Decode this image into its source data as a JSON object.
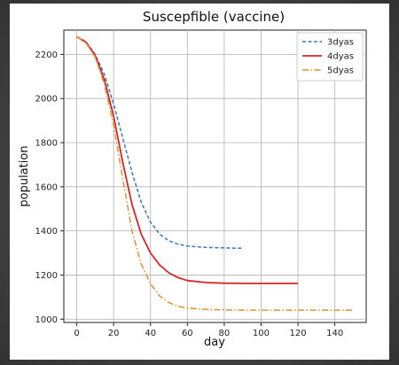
{
  "chart_data": {
    "type": "line",
    "title": "Suscepfible (vaccine)",
    "xlabel": "day",
    "ylabel": "population",
    "xlim": [
      -7,
      157
    ],
    "ylim": [
      985,
      2310
    ],
    "xticks": [
      0,
      20,
      40,
      60,
      80,
      100,
      120,
      140
    ],
    "yticks": [
      1000,
      1200,
      1400,
      1600,
      1800,
      2000,
      2200
    ],
    "grid": true,
    "legend_position": "top-right",
    "series": [
      {
        "name": "3dyas",
        "color": "#3a78b5",
        "style": "dashed",
        "x": [
          0,
          5,
          10,
          15,
          20,
          25,
          30,
          35,
          40,
          45,
          50,
          55,
          60,
          65,
          70,
          75,
          80,
          85,
          90
        ],
        "y": [
          2280,
          2258,
          2200,
          2110,
          1975,
          1820,
          1665,
          1530,
          1440,
          1385,
          1355,
          1340,
          1332,
          1328,
          1325,
          1324,
          1323,
          1322,
          1322
        ]
      },
      {
        "name": "4dyas",
        "color": "#d62728",
        "style": "solid",
        "x": [
          0,
          5,
          10,
          15,
          20,
          25,
          30,
          35,
          40,
          45,
          50,
          55,
          60,
          70,
          80,
          90,
          100,
          110,
          120
        ],
        "y": [
          2280,
          2255,
          2195,
          2085,
          1920,
          1710,
          1520,
          1385,
          1300,
          1245,
          1210,
          1188,
          1175,
          1166,
          1163,
          1162,
          1162,
          1162,
          1162
        ]
      },
      {
        "name": "5dyas",
        "color": "#e3902f",
        "style": "dashdot",
        "x": [
          0,
          5,
          10,
          15,
          20,
          25,
          30,
          35,
          40,
          45,
          50,
          55,
          60,
          70,
          80,
          90,
          100,
          110,
          120,
          130,
          140,
          150
        ],
        "y": [
          2280,
          2252,
          2188,
          2065,
          1880,
          1635,
          1400,
          1250,
          1160,
          1105,
          1075,
          1058,
          1050,
          1044,
          1042,
          1041,
          1041,
          1041,
          1041,
          1041,
          1041,
          1041
        ]
      }
    ]
  }
}
